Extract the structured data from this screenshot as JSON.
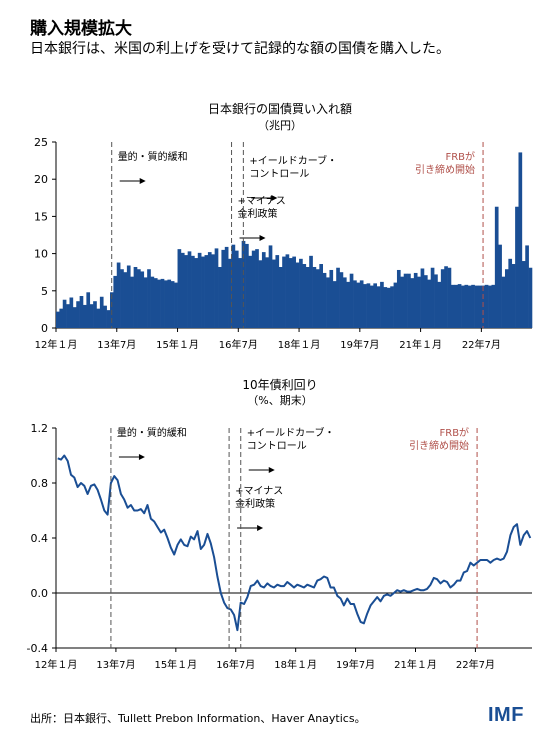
{
  "header": {
    "title": "購入規模拡大",
    "subtitle": "日本銀行は、米国の利上げを受けて記録的な額の国債を購入した。"
  },
  "footer": {
    "source": "出所：日本銀行、Tullett Prebon Information、Haver Anaytics。",
    "logo": "IMF"
  },
  "colors": {
    "bar": "#1a4e94",
    "line": "#1a4e94",
    "frb": "#b0504a",
    "dash": "#555555"
  },
  "chart_data": [
    {
      "type": "bar",
      "title": "日本銀行の国債買い入れ額",
      "unit": "（兆円）",
      "ylim": [
        0,
        25
      ],
      "yticks": [
        0,
        5,
        10,
        15,
        20,
        25
      ],
      "x_ticks": [
        {
          "label": "12年１月",
          "i": 0
        },
        {
          "label": "13年7月",
          "i": 18
        },
        {
          "label": "15年１月",
          "i": 36
        },
        {
          "label": "16年7月",
          "i": 54
        },
        {
          "label": "18年１月",
          "i": 72
        },
        {
          "label": "19年7月",
          "i": 90
        },
        {
          "label": "21年１月",
          "i": 108
        },
        {
          "label": "22年7月",
          "i": 126
        }
      ],
      "values": [
        2.2,
        2.6,
        3.8,
        3.2,
        4.1,
        2.8,
        3.6,
        4.3,
        3.1,
        4.8,
        3.2,
        3.6,
        2.6,
        4.2,
        3.0,
        2.4,
        4.8,
        7.0,
        8.8,
        7.9,
        7.5,
        8.4,
        6.9,
        8.2,
        7.9,
        7.6,
        6.8,
        7.9,
        6.9,
        6.7,
        6.5,
        6.6,
        6.4,
        6.5,
        6.3,
        6.1,
        10.6,
        10.1,
        9.8,
        10.3,
        9.7,
        9.4,
        10.1,
        9.6,
        9.8,
        10.2,
        9.9,
        10.7,
        8.2,
        10.5,
        10.9,
        9.3,
        11.2,
        10.4,
        9.4,
        11.7,
        11.3,
        9.7,
        10.4,
        10.6,
        9.1,
        10.2,
        9.5,
        11.1,
        9.2,
        9.8,
        8.2,
        9.6,
        9.9,
        9.4,
        9.6,
        8.8,
        9.3,
        8.6,
        8.2,
        9.7,
        8.2,
        7.9,
        8.6,
        7.4,
        6.8,
        7.8,
        6.3,
        8.1,
        7.5,
        6.8,
        6.2,
        7.3,
        6.4,
        6.1,
        6.4,
        5.9,
        6.0,
        5.7,
        6.0,
        5.6,
        6.2,
        5.5,
        5.4,
        5.6,
        6.1,
        7.8,
        6.9,
        7.3,
        7.3,
        6.7,
        7.4,
        6.9,
        8.0,
        7.1,
        6.5,
        8.1,
        7.2,
        6.2,
        7.9,
        8.3,
        8.1,
        5.8,
        5.8,
        5.9,
        5.7,
        5.8,
        5.7,
        5.8,
        5.7,
        5.7,
        5.7,
        5.8,
        5.7,
        5.8,
        16.3,
        11.2,
        6.9,
        7.9,
        9.3,
        8.6,
        16.3,
        23.6,
        9.0,
        11.1,
        8.1
      ],
      "events": [
        {
          "label": "量的・質的緩和",
          "i": 16.5,
          "label_lines": [
            "量的・質的緩和"
          ],
          "arrow": true,
          "color": "dash"
        },
        {
          "label": "+マイナス\n金利政策",
          "i": 52,
          "label_lines": [
            "+マイナス",
            "金利政策"
          ],
          "arrow": true,
          "color": "dash"
        },
        {
          "label": "+イールドカーブ・\nコントロール",
          "i": 55.5,
          "label_lines": [
            "+イールドカーブ・",
            "コントロール"
          ],
          "arrow": true,
          "color": "dash"
        },
        {
          "label": "FRBが\n引き締め開始",
          "i": 126.5,
          "label_lines": [
            "FRBが",
            "引き締め開始"
          ],
          "arrow": false,
          "color": "frb"
        }
      ]
    },
    {
      "type": "line",
      "title": "10年債利回り",
      "unit": "（%、期末）",
      "ylim": [
        -0.4,
        1.2
      ],
      "yticks": [
        -0.4,
        0.0,
        0.4,
        0.8,
        1.2
      ],
      "ytick_labels": [
        "-0.4",
        "0.0",
        "0.4",
        "0.8",
        "1.2"
      ],
      "x_ticks": [
        {
          "label": "12年１月",
          "i": 0
        },
        {
          "label": "13年7月",
          "i": 18
        },
        {
          "label": "15年１月",
          "i": 36
        },
        {
          "label": "16年7月",
          "i": 54
        },
        {
          "label": "18年１月",
          "i": 72
        },
        {
          "label": "19年7月",
          "i": 90
        },
        {
          "label": "21年１月",
          "i": 108
        },
        {
          "label": "22年7月",
          "i": 126
        }
      ],
      "values": [
        0.98,
        0.97,
        1.0,
        0.96,
        0.86,
        0.84,
        0.77,
        0.8,
        0.78,
        0.72,
        0.78,
        0.79,
        0.75,
        0.68,
        0.6,
        0.57,
        0.8,
        0.85,
        0.82,
        0.72,
        0.68,
        0.62,
        0.64,
        0.6,
        0.6,
        0.61,
        0.58,
        0.64,
        0.54,
        0.52,
        0.48,
        0.44,
        0.46,
        0.4,
        0.33,
        0.28,
        0.35,
        0.39,
        0.35,
        0.34,
        0.41,
        0.39,
        0.45,
        0.32,
        0.35,
        0.43,
        0.36,
        0.26,
        0.12,
        0.0,
        -0.07,
        -0.11,
        -0.12,
        -0.16,
        -0.27,
        -0.07,
        -0.08,
        -0.03,
        0.05,
        0.06,
        0.09,
        0.05,
        0.04,
        0.07,
        0.05,
        0.04,
        0.06,
        0.05,
        0.05,
        0.08,
        0.06,
        0.04,
        0.06,
        0.05,
        0.04,
        0.06,
        0.05,
        0.04,
        0.09,
        0.1,
        0.12,
        0.11,
        0.04,
        0.04,
        -0.02,
        -0.04,
        -0.09,
        -0.04,
        -0.08,
        -0.08,
        -0.15,
        -0.21,
        -0.22,
        -0.15,
        -0.09,
        -0.06,
        -0.03,
        -0.06,
        -0.02,
        -0.01,
        -0.02,
        0.0,
        0.02,
        0.01,
        0.02,
        0.01,
        0.01,
        0.02,
        0.03,
        0.02,
        0.02,
        0.03,
        0.06,
        0.11,
        0.1,
        0.07,
        0.09,
        0.08,
        0.04,
        0.06,
        0.09,
        0.09,
        0.15,
        0.16,
        0.22,
        0.2,
        0.22,
        0.24,
        0.24,
        0.24,
        0.22,
        0.24,
        0.25,
        0.24,
        0.25,
        0.3,
        0.42,
        0.48,
        0.5,
        0.35,
        0.42,
        0.45,
        0.4
      ],
      "events": [
        {
          "label": "量的・質的緩和",
          "i": 16.5,
          "label_lines": [
            "量的・質的緩和"
          ],
          "arrow": true,
          "color": "dash"
        },
        {
          "label": "+マイナス\n金利政策",
          "i": 52,
          "label_lines": [
            "+マイナス",
            "金利政策"
          ],
          "arrow": true,
          "color": "dash"
        },
        {
          "label": "+イールドカーブ・\nコントロール",
          "i": 55.5,
          "label_lines": [
            "+イールドカーブ・",
            "コントロール"
          ],
          "arrow": true,
          "color": "dash"
        },
        {
          "label": "FRBが\n引き締め開始",
          "i": 126.5,
          "label_lines": [
            "FRBが",
            "引き締め開始"
          ],
          "arrow": false,
          "color": "frb"
        }
      ]
    }
  ]
}
